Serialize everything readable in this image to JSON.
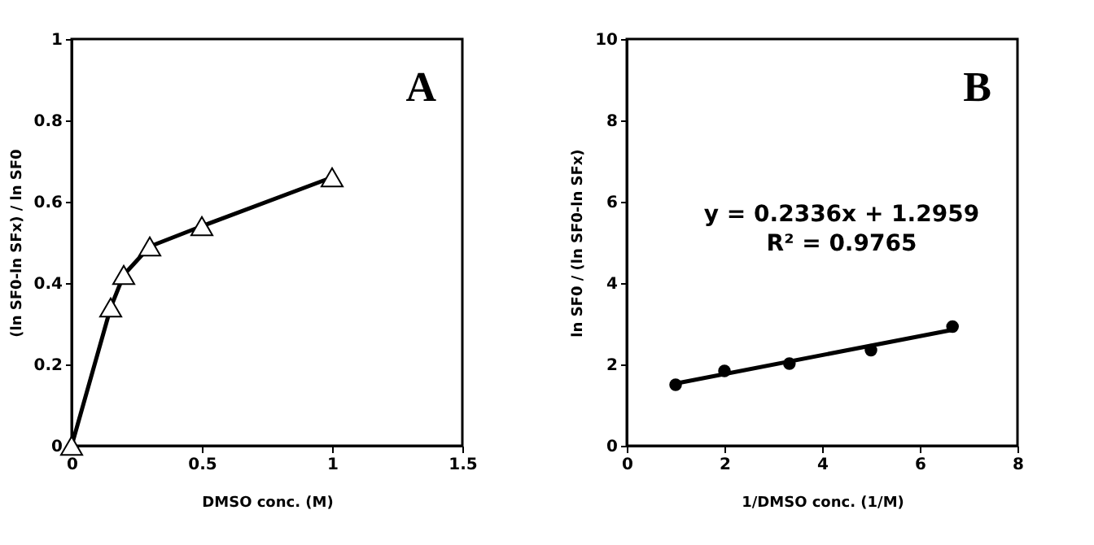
{
  "chart_data": [
    {
      "type": "line",
      "xlabel": "DMSO conc. (M)",
      "ylabel": "(ln SF0-ln SFx) / ln SF0",
      "annotations": [
        "A"
      ],
      "xlim": [
        0,
        1.5
      ],
      "xticks": [
        0,
        0.5,
        1,
        1.5
      ],
      "ylim": [
        0,
        1
      ],
      "yticks": [
        0,
        0.2,
        0.4,
        0.6,
        0.8,
        1
      ],
      "grid": false,
      "x": [
        0,
        0.15,
        0.2,
        0.3,
        0.5,
        1
      ],
      "series": [
        {
          "color": "#000000",
          "marker": "triangle",
          "values": [
            0,
            0.34,
            0.42,
            0.49,
            0.54,
            0.66
          ]
        }
      ]
    },
    {
      "type": "scatter",
      "xlabel": "1/DMSO conc. (1/M)",
      "ylabel": "ln SF0 / (ln SF0-ln SFx)",
      "annotations": [
        "B",
        "y = 0.2336x + 1.2959",
        "R² = 0.9765"
      ],
      "xlim": [
        0,
        8
      ],
      "xticks": [
        0,
        2,
        4,
        6,
        8
      ],
      "ylim": [
        0,
        10
      ],
      "yticks": [
        0,
        2,
        4,
        6,
        8,
        10
      ],
      "grid": false,
      "x": [
        1,
        2,
        3.33,
        5,
        6.67
      ],
      "series": [
        {
          "color": "#000000",
          "marker": "circle",
          "values": [
            1.5,
            1.84,
            2.02,
            2.35,
            2.93
          ]
        },
        {
          "type": "line",
          "color": "#000000",
          "marker": "none",
          "x": [
            1,
            6.67
          ],
          "values": [
            1.53,
            2.85
          ]
        }
      ]
    }
  ]
}
